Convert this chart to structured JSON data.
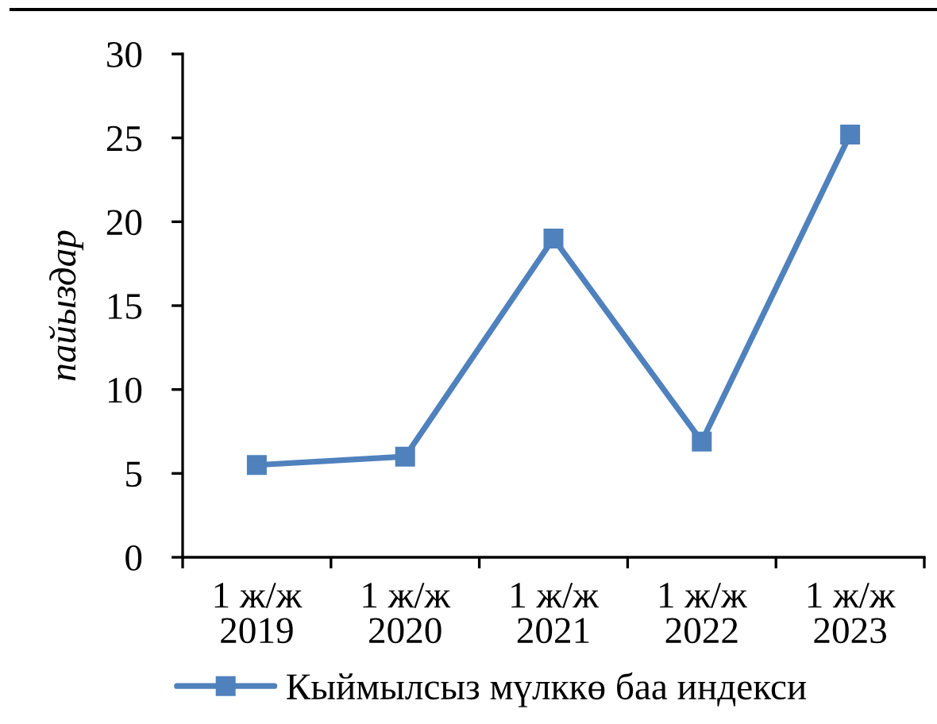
{
  "chart_data": {
    "type": "line",
    "ylabel": "пайыздар",
    "categories": [
      "1 ж/ж\n2019",
      "1 ж/ж\n2020",
      "1 ж/ж\n2021",
      "1 ж/ж\n2022",
      "1 ж/ж\n2023"
    ],
    "series": [
      {
        "name": "Кыймылсыз мүлккө баа индекси",
        "color": "#4f81bd",
        "values": [
          5.5,
          6.0,
          19.0,
          6.9,
          25.2
        ]
      }
    ],
    "ylim": [
      0,
      30
    ],
    "yticks": [
      0,
      5,
      10,
      15,
      20,
      25,
      30
    ],
    "grid": false,
    "legend": "bottom",
    "marker": "square",
    "line_style": "solid"
  }
}
